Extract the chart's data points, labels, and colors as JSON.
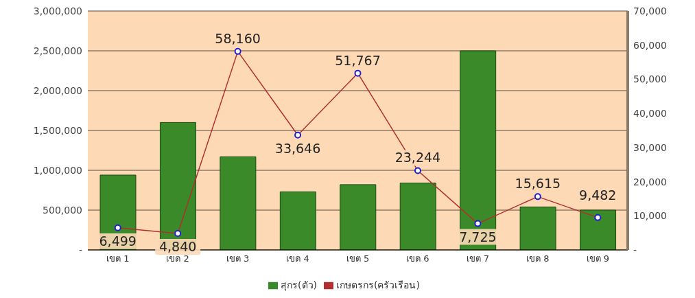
{
  "chart_data": {
    "type": "bar",
    "categories": [
      "เขต 1",
      "เขต 2",
      "เขต 3",
      "เขต 4",
      "เขต 5",
      "เขต 6",
      "เขต 7",
      "เขต 8",
      "เขต 9"
    ],
    "series": [
      {
        "name": "สุกร(ตัว)",
        "color": "#3a8a2a",
        "values": [
          940000,
          1600000,
          1170000,
          730000,
          820000,
          840000,
          2500000,
          540000,
          500000
        ]
      },
      {
        "name": "เกษตรกร(ครัวเรือน)",
        "type": "line",
        "axis": "y2",
        "color": "#b03030",
        "marker": "circle",
        "values": [
          6499,
          4840,
          58160,
          33646,
          51767,
          23244,
          7725,
          15615,
          9482
        ],
        "value_labels": [
          "6,499",
          "4,840",
          "58,160",
          "33,646",
          "51,767",
          "23,244",
          "7,725",
          "15,615",
          "9,482"
        ]
      }
    ],
    "ylim": [
      0,
      3000000
    ],
    "yticks": [
      {
        "value": 0,
        "label": "-"
      },
      {
        "value": 500000,
        "label": "500,000"
      },
      {
        "value": 1000000,
        "label": "1,000,000"
      },
      {
        "value": 1500000,
        "label": "1,500,000"
      },
      {
        "value": 2000000,
        "label": "2,000,000"
      },
      {
        "value": 2500000,
        "label": "2,500,000"
      },
      {
        "value": 3000000,
        "label": "3,000,000"
      }
    ],
    "y2lim": [
      0,
      70000
    ],
    "y2ticks": [
      {
        "value": 0,
        "label": "-"
      },
      {
        "value": 10000,
        "label": "10,000"
      },
      {
        "value": 20000,
        "label": "20,000"
      },
      {
        "value": 30000,
        "label": "30,000"
      },
      {
        "value": 40000,
        "label": "40,000"
      },
      {
        "value": 50000,
        "label": "50,000"
      },
      {
        "value": 60000,
        "label": "60,000"
      },
      {
        "value": 70000,
        "label": "70,000"
      }
    ],
    "grid": "y",
    "legend": "bottom"
  }
}
